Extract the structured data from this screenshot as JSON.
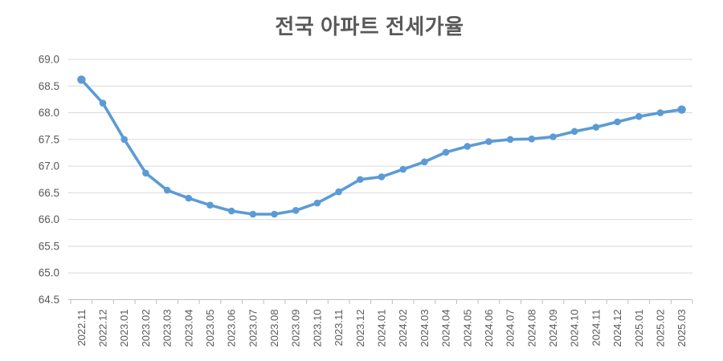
{
  "chart_data": {
    "type": "line",
    "title": "전국 아파트 전세가율",
    "xlabel": "",
    "ylabel": "",
    "categories": [
      "2022.11",
      "2022.12",
      "2023.01",
      "2023.02",
      "2023.03",
      "2023.04",
      "2023.05",
      "2023.06",
      "2023.07",
      "2023.08",
      "2023.09",
      "2023.10",
      "2023.11",
      "2023.12",
      "2024.01",
      "2024.02",
      "2024.03",
      "2024.04",
      "2024.05",
      "2024.06",
      "2024.07",
      "2024.08",
      "2024.09",
      "2024.10",
      "2024.11",
      "2024.12",
      "2025.01",
      "2025.02",
      "2025.03"
    ],
    "values": [
      68.62,
      68.18,
      67.5,
      66.87,
      66.55,
      66.4,
      66.27,
      66.16,
      66.1,
      66.1,
      66.17,
      66.31,
      66.52,
      66.75,
      66.8,
      66.94,
      67.08,
      67.26,
      67.37,
      67.46,
      67.5,
      67.51,
      67.55,
      67.65,
      67.73,
      67.83,
      67.93,
      68.0,
      68.06
    ],
    "ylim": [
      64.5,
      69.0
    ],
    "ytick_step": 0.5,
    "y_tick_labels": [
      "69.0",
      "68.5",
      "68.0",
      "67.5",
      "67.0",
      "66.5",
      "66.0",
      "65.5",
      "65.0",
      "64.5"
    ],
    "grid": true,
    "legend": false,
    "colors": {
      "line": "#5B9BD5",
      "gridline": "#D9D9D9",
      "axis_line": "#BFBFBF",
      "axis_text": "#595959",
      "title_text": "#595959",
      "background": "#FFFFFF"
    }
  }
}
